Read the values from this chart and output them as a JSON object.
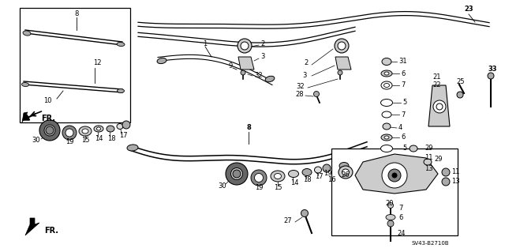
{
  "bg_color": "#ffffff",
  "fig_width": 6.4,
  "fig_height": 3.19,
  "dpi": 100,
  "diagram_code": "SV43-B2710B"
}
